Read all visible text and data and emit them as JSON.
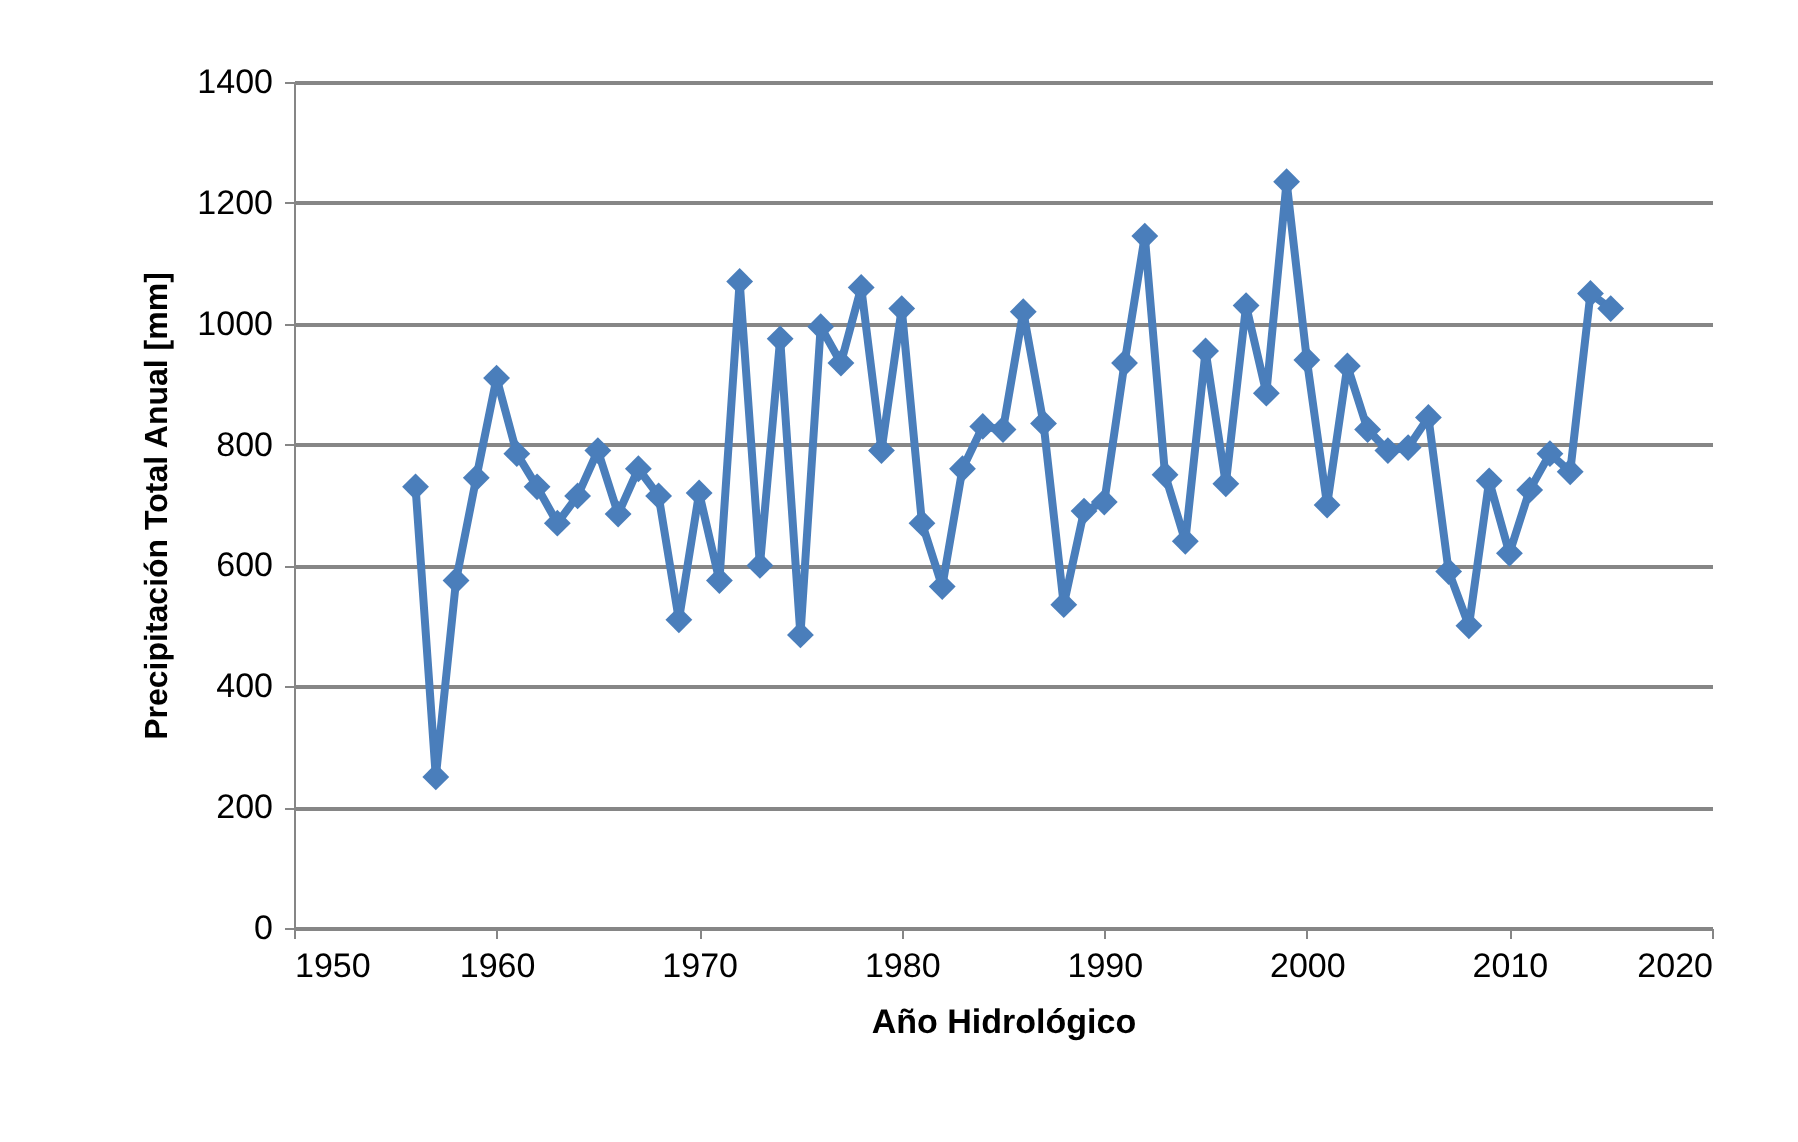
{
  "chart_data": {
    "type": "line",
    "xlabel": "Año Hidrológico",
    "ylabel": "Precipitación Total Anual [mm]",
    "x": [
      1956,
      1957,
      1958,
      1959,
      1960,
      1961,
      1962,
      1963,
      1964,
      1965,
      1966,
      1967,
      1968,
      1969,
      1970,
      1971,
      1972,
      1973,
      1974,
      1975,
      1976,
      1977,
      1978,
      1979,
      1980,
      1981,
      1982,
      1983,
      1984,
      1985,
      1986,
      1987,
      1988,
      1989,
      1990,
      1991,
      1992,
      1993,
      1994,
      1995,
      1996,
      1997,
      1998,
      1999,
      2000,
      2001,
      2002,
      2003,
      2004,
      2005,
      2006,
      2007,
      2008,
      2009,
      2010,
      2011,
      2012,
      2013,
      2014,
      2015
    ],
    "series": [
      {
        "color": "#4a7ebb",
        "values": [
          730,
          250,
          575,
          745,
          910,
          785,
          730,
          670,
          715,
          790,
          685,
          760,
          715,
          510,
          720,
          575,
          1070,
          600,
          975,
          485,
          995,
          935,
          1060,
          790,
          1025,
          670,
          565,
          760,
          830,
          825,
          1020,
          835,
          535,
          690,
          705,
          935,
          1145,
          750,
          640,
          955,
          735,
          1030,
          885,
          1235,
          940,
          700,
          930,
          825,
          790,
          795,
          845,
          590,
          500,
          740,
          620,
          725,
          785,
          755,
          1050,
          1025
        ]
      }
    ],
    "xlim": [
      1950,
      2020
    ],
    "xticks": [
      1950,
      1960,
      1970,
      1980,
      1990,
      2000,
      2010,
      2020
    ],
    "ylim": [
      0,
      1400
    ],
    "yticks": [
      0,
      200,
      400,
      600,
      800,
      1000,
      1200,
      1400
    ],
    "grid": "y",
    "marker": "diamond",
    "line_style": "solid"
  }
}
